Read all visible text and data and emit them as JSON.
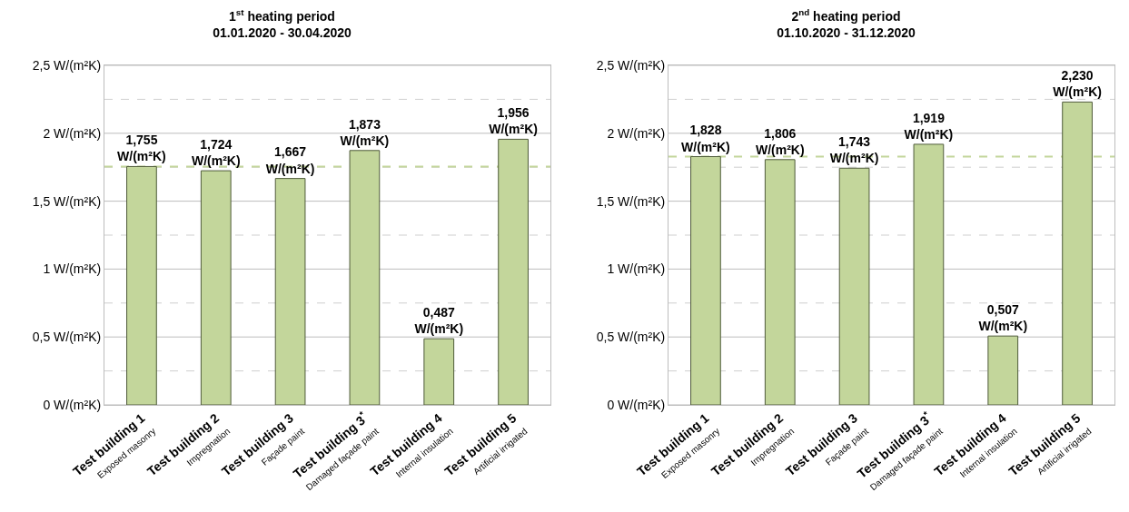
{
  "chart_data": [
    {
      "type": "bar",
      "title": "1$^{st}$ heating period\n01.01.2020 - 30.04.2020",
      "categories": [
        "Test building 1\nExposed masonry",
        "Test building 2\nImpregnation",
        "Test building 3\nFaçade paint",
        "Test building 3$^{*}$\nDamaged façade paint",
        "Test building 4\nInternal insulation",
        "Test building 5\nArtificial irrigated"
      ],
      "series": [
        {
          "color": "#c3d69b",
          "values": [
            1.755,
            1.724,
            1.667,
            1.873,
            0.487,
            1.956
          ],
          "value_labels": [
            "1,755\nW/(m²K)",
            "1,724\nW/(m²K)",
            "1,667\nW/(m²K)",
            "1,873\nW/(m²K)",
            "0,487\nW/(m²K)",
            "1,956\nW/(m²K)"
          ]
        }
      ],
      "ylim": [
        0,
        2.5
      ],
      "yticks": [
        {
          "value": 0,
          "label": "0 W/(m²K)"
        },
        {
          "value": 0.25,
          "label": null
        },
        {
          "value": 0.5,
          "label": "0,5 W/(m²K)"
        },
        {
          "value": 0.75,
          "label": null
        },
        {
          "value": 1,
          "label": "1 W/(m²K)"
        },
        {
          "value": 1.25,
          "label": null
        },
        {
          "value": 1.5,
          "label": "1,5 W/(m²K)"
        },
        {
          "value": 1.75,
          "label": null
        },
        {
          "value": 2,
          "label": "2 W/(m²K)"
        },
        {
          "value": 2.25,
          "label": null
        },
        {
          "value": 2.5,
          "label": "2,5 W/(m²K)"
        }
      ],
      "grid": "y",
      "ref_lines": [
        {
          "axis": "y",
          "value": 1.755,
          "color": "#c3d69b",
          "line_style": "dashed"
        }
      ]
    },
    {
      "type": "bar",
      "title": "2$^{nd}$ heating period\n01.10.2020 - 31.12.2020",
      "categories": [
        "Test building 1\nExposed masonry",
        "Test building 2\nImpregnation",
        "Test building 3\nFaçade paint",
        "Test building 3$^{*}$\nDamaged façade paint",
        "Test building 4\nInternal insulation",
        "Test building 5\nArtificial irrigated"
      ],
      "series": [
        {
          "color": "#c3d69b",
          "values": [
            1.828,
            1.806,
            1.743,
            1.919,
            0.507,
            2.23
          ],
          "value_labels": [
            "1,828\nW/(m²K)",
            "1,806\nW/(m²K)",
            "1,743\nW/(m²K)",
            "1,919\nW/(m²K)",
            "0,507\nW/(m²K)",
            "2,230\nW/(m²K)"
          ]
        }
      ],
      "ylim": [
        0,
        2.5
      ],
      "yticks": [
        {
          "value": 0,
          "label": "0 W/(m²K)"
        },
        {
          "value": 0.25,
          "label": null
        },
        {
          "value": 0.5,
          "label": "0,5 W/(m²K)"
        },
        {
          "value": 0.75,
          "label": null
        },
        {
          "value": 1,
          "label": "1 W/(m²K)"
        },
        {
          "value": 1.25,
          "label": null
        },
        {
          "value": 1.5,
          "label": "1,5 W/(m²K)"
        },
        {
          "value": 1.75,
          "label": null
        },
        {
          "value": 2,
          "label": "2 W/(m²K)"
        },
        {
          "value": 2.25,
          "label": null
        },
        {
          "value": 2.5,
          "label": "2,5 W/(m²K)"
        }
      ],
      "grid": "y",
      "ref_lines": [
        {
          "axis": "y",
          "value": 1.828,
          "color": "#c3d69b",
          "line_style": "dashed"
        }
      ]
    }
  ]
}
